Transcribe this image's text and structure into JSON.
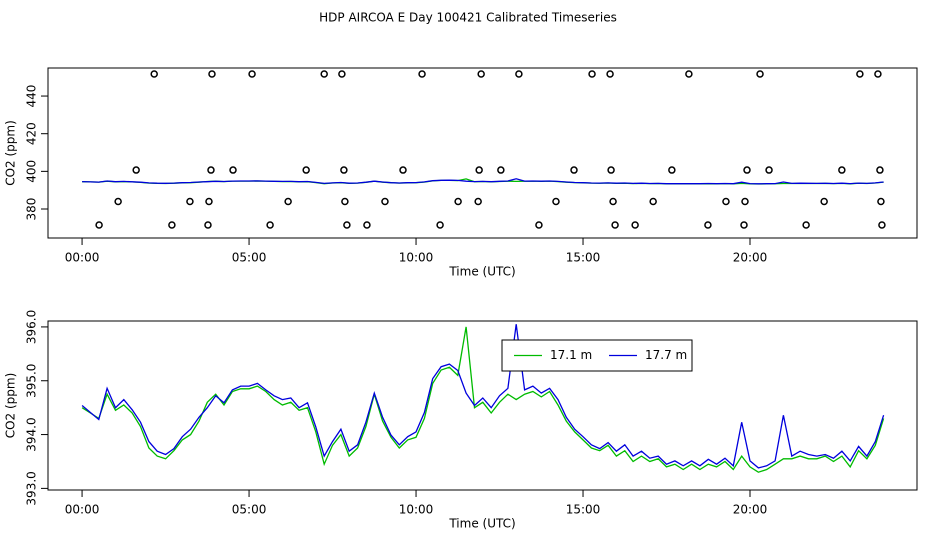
{
  "chart_data": [
    {
      "type": "scatter",
      "title": "HDP AIRCOA E  Day 100421  Calibrated Timeseries",
      "x_label": "Time (UTC)",
      "y_label": "CO2 (ppm)",
      "marker_color": "#000000",
      "x": [
        2.16,
        3.89,
        5.09,
        7.25,
        7.78,
        10.18,
        11.95,
        13.08,
        15.27,
        15.81,
        18.17,
        20.3,
        23.29,
        23.83,
        1.62,
        3.86,
        4.52,
        6.71,
        7.84,
        9.61,
        11.89,
        12.54,
        14.73,
        15.84,
        17.66,
        19.91,
        20.57,
        22.75,
        23.89,
        1.08,
        3.23,
        3.8,
        6.17,
        7.87,
        9.07,
        11.26,
        11.86,
        14.19,
        15.9,
        17.1,
        19.28,
        19.85,
        22.22,
        23.92,
        0.51,
        2.69,
        3.77,
        5.63,
        7.93,
        8.53,
        10.72,
        13.68,
        15.96,
        16.56,
        18.74,
        19.82,
        21.68,
        23.95
      ],
      "values": [
        451.7,
        451.7,
        451.7,
        451.7,
        451.7,
        451.7,
        451.7,
        451.7,
        451.7,
        451.7,
        451.7,
        451.7,
        451.7,
        451.7,
        400.7,
        400.7,
        400.7,
        400.7,
        400.7,
        400.7,
        400.7,
        400.7,
        400.7,
        400.7,
        400.7,
        400.7,
        400.7,
        400.7,
        400.7,
        384,
        384,
        384,
        384,
        384,
        384,
        384,
        384,
        384,
        384,
        384,
        384,
        384,
        384,
        384,
        371.5,
        371.5,
        371.5,
        371.5,
        371.5,
        371.5,
        371.5,
        371.5,
        371.5,
        371.5,
        371.5,
        371.5,
        371.5,
        371.5
      ],
      "xlim": [
        -1.02,
        25.0
      ],
      "xticks": [
        {
          "value": 0,
          "label": "00:00"
        },
        {
          "value": 5,
          "label": "05:00"
        },
        {
          "value": 10,
          "label": "10:00"
        },
        {
          "value": 15,
          "label": "15:00"
        },
        {
          "value": 20,
          "label": "20:00"
        }
      ],
      "ylim": [
        364.6,
        454.9
      ],
      "yticks": [
        380,
        400,
        420,
        440
      ]
    },
    {
      "type": "line",
      "x_label": "Time (UTC)",
      "y_label": "CO2 (ppm)",
      "legend": "top",
      "x": [
        0,
        0.25,
        0.5,
        0.75,
        1,
        1.25,
        1.5,
        1.75,
        2,
        2.25,
        2.5,
        2.75,
        3,
        3.25,
        3.5,
        3.75,
        4,
        4.25,
        4.5,
        4.75,
        5,
        5.25,
        5.5,
        5.75,
        6,
        6.25,
        6.5,
        6.75,
        7,
        7.25,
        7.5,
        7.75,
        8,
        8.25,
        8.5,
        8.75,
        9,
        9.25,
        9.5,
        9.75,
        10,
        10.25,
        10.5,
        10.75,
        11,
        11.25,
        11.5,
        11.75,
        12,
        12.25,
        12.5,
        12.75,
        13,
        13.25,
        13.5,
        13.75,
        14,
        14.25,
        14.5,
        14.75,
        15,
        15.25,
        15.5,
        15.75,
        16,
        16.25,
        16.5,
        16.75,
        17,
        17.25,
        17.5,
        17.75,
        18,
        18.25,
        18.5,
        18.75,
        19,
        19.25,
        19.5,
        19.75,
        20,
        20.25,
        20.5,
        20.75,
        21,
        21.25,
        21.5,
        21.75,
        22,
        22.25,
        22.5,
        22.75,
        23,
        23.25,
        23.5,
        23.75,
        24
      ],
      "series": [
        {
          "name": "17.1 m",
          "color": "#00bb00",
          "values": [
            394.5,
            394.4,
            394.3,
            394.75,
            394.45,
            394.55,
            394.4,
            394.15,
            393.75,
            393.6,
            393.55,
            393.7,
            393.9,
            394.0,
            394.25,
            394.6,
            394.75,
            394.55,
            394.8,
            394.85,
            394.85,
            394.9,
            394.8,
            394.65,
            394.55,
            394.6,
            394.45,
            394.5,
            394.05,
            393.45,
            393.8,
            394.0,
            393.6,
            393.75,
            394.15,
            394.75,
            394.25,
            393.95,
            393.75,
            393.9,
            393.95,
            394.3,
            394.95,
            395.2,
            395.25,
            395.1,
            396.0,
            394.5,
            394.6,
            394.4,
            394.6,
            394.75,
            394.65,
            394.75,
            394.8,
            394.7,
            394.8,
            394.55,
            394.25,
            394.05,
            393.9,
            393.75,
            393.7,
            393.8,
            393.6,
            393.7,
            393.5,
            393.6,
            393.5,
            393.55,
            393.4,
            393.45,
            393.35,
            393.45,
            393.35,
            393.45,
            393.4,
            393.5,
            393.35,
            393.6,
            393.4,
            393.3,
            393.35,
            393.45,
            393.55,
            393.55,
            393.6,
            393.55,
            393.55,
            393.6,
            393.5,
            393.6,
            393.4,
            393.7,
            393.55,
            393.8,
            394.3
          ]
        },
        {
          "name": "17.7 m",
          "color": "#0000dd",
          "values": [
            394.54,
            394.41,
            394.28,
            394.86,
            394.5,
            394.65,
            394.46,
            394.23,
            393.87,
            393.69,
            393.63,
            393.74,
            393.96,
            394.1,
            394.32,
            394.5,
            394.72,
            394.59,
            394.83,
            394.9,
            394.9,
            394.95,
            394.83,
            394.72,
            394.65,
            394.68,
            394.5,
            394.59,
            394.14,
            393.6,
            393.87,
            394.1,
            393.69,
            393.81,
            394.23,
            394.77,
            394.32,
            393.99,
            393.81,
            393.96,
            394.05,
            394.41,
            395.04,
            395.26,
            395.31,
            395.19,
            394.77,
            394.54,
            394.68,
            394.5,
            394.72,
            394.86,
            396.05,
            394.83,
            394.9,
            394.77,
            394.86,
            394.65,
            394.32,
            394.1,
            393.96,
            393.81,
            393.74,
            393.85,
            393.69,
            393.81,
            393.6,
            393.69,
            393.56,
            393.6,
            393.45,
            393.51,
            393.42,
            393.51,
            393.42,
            393.54,
            393.45,
            393.56,
            393.42,
            394.23,
            393.51,
            393.38,
            393.42,
            393.51,
            394.36,
            393.6,
            393.69,
            393.63,
            393.6,
            393.63,
            393.56,
            393.69,
            393.51,
            393.78,
            393.6,
            393.87,
            394.36
          ]
        }
      ],
      "xlim": [
        -1.02,
        25.0
      ],
      "xticks": [
        {
          "value": 0,
          "label": "00:00"
        },
        {
          "value": 5,
          "label": "05:00"
        },
        {
          "value": 10,
          "label": "10:00"
        },
        {
          "value": 15,
          "label": "15:00"
        },
        {
          "value": 20,
          "label": "20:00"
        }
      ],
      "ylim": [
        392.97,
        396.11
      ],
      "yticks": [
        {
          "value": 393,
          "label": "393.0"
        },
        {
          "value": 394,
          "label": "394.0"
        },
        {
          "value": 395,
          "label": "395.0"
        },
        {
          "value": 396,
          "label": "396.0"
        }
      ]
    }
  ]
}
